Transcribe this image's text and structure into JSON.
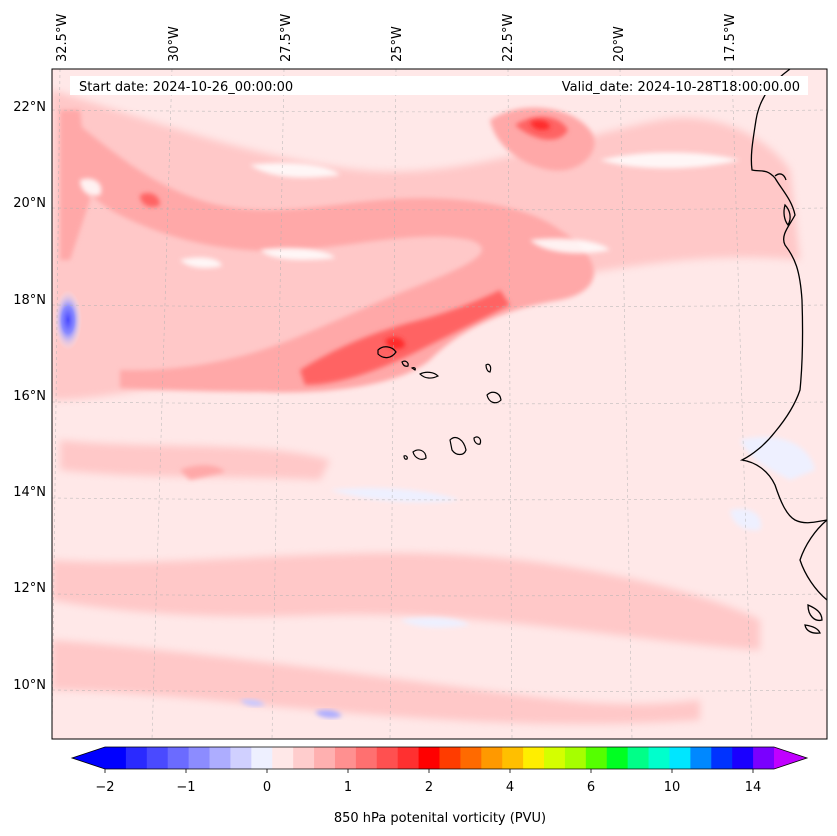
{
  "header": {
    "start_date": "Start date: 2024-10-26_00:00:00",
    "valid_date": "Valid_date: 2024-10-28T18:00:00.00"
  },
  "map": {
    "region": "Cape Verde and West African coast",
    "lon_labels": [
      "32.5°W",
      "30°W",
      "27.5°W",
      "25°W",
      "22.5°W",
      "20°W",
      "17.5°W"
    ],
    "lat_labels": [
      "22°N",
      "20°N",
      "18°N",
      "16°N",
      "14°N",
      "12°N",
      "10°N"
    ],
    "gridlines": true,
    "colors": {
      "background_low": "#ffe8e8",
      "band_light": "#ffc8c8",
      "band_mid": "#ffa8a8",
      "band_strong": "#ff6464",
      "band_peak": "#ff2a2a",
      "negative_light": "#eef0ff",
      "negative_strong": "#5a5aff",
      "coastline": "#000000"
    }
  },
  "colorbar": {
    "label": "850 hPa potenital vorticity (PVU)",
    "tick_labels": [
      "−2",
      "−1",
      "0",
      "1",
      "2",
      "4",
      "6",
      "10",
      "14"
    ],
    "colors": [
      "#0000ff",
      "#2a2aff",
      "#4a4aff",
      "#6b6bff",
      "#8c8cff",
      "#adadff",
      "#d0d0ff",
      "#eef0ff",
      "#ffe8e8",
      "#ffcdcd",
      "#ffb0b0",
      "#ff9090",
      "#ff7070",
      "#ff5050",
      "#ff3030",
      "#ff0000",
      "#ff3c00",
      "#ff6a00",
      "#ff9900",
      "#ffbf00",
      "#ffee00",
      "#d4ff00",
      "#a6ff00",
      "#55ff00",
      "#00ff22",
      "#00ff88",
      "#00ffcc",
      "#00e6ff",
      "#0088ff",
      "#0033ff",
      "#1a00ff",
      "#7a00ff"
    ],
    "under_color": "#0000ff",
    "over_color": "#c000ff"
  }
}
